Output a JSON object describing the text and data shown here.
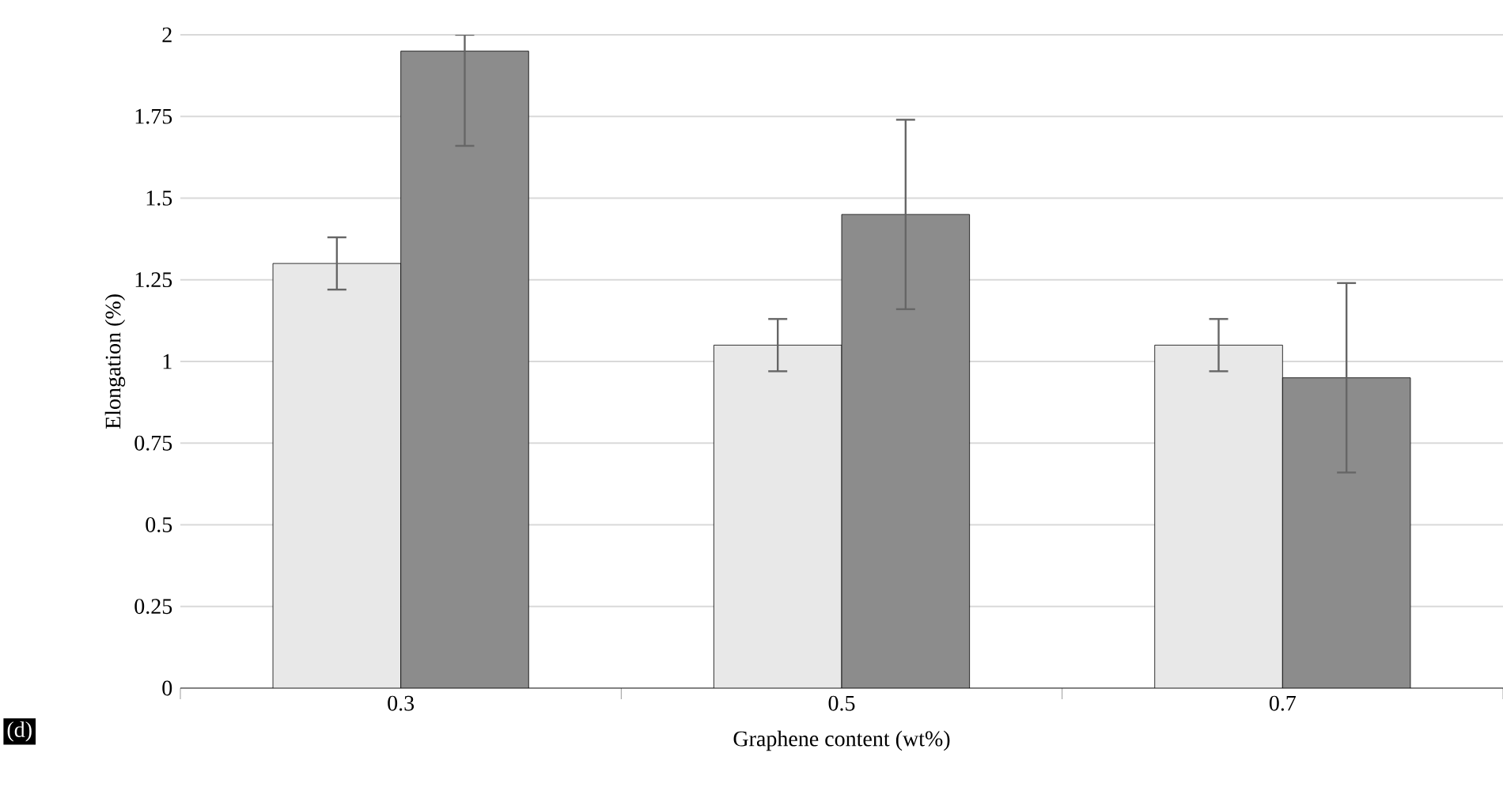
{
  "chart_data": {
    "type": "bar",
    "xlabel": "Graphene content (wt%)",
    "ylabel": "Elongation (%)",
    "categories": [
      "0.3",
      "0.5",
      "0.7"
    ],
    "series": [
      {
        "color": "#e8e8e8",
        "values": [
          1.3,
          1.05,
          1.05
        ],
        "errors": [
          0.08,
          0.08,
          0.08
        ]
      },
      {
        "color": "#8c8c8c",
        "values": [
          1.95,
          1.45,
          0.95
        ],
        "errors": [
          [
            1.66,
            2
          ],
          0.29,
          0.29
        ]
      }
    ],
    "ylim": [
      0,
      2
    ],
    "yticks": [
      0,
      0.25,
      0.5,
      0.75,
      1,
      1.25,
      1.5,
      1.75,
      2
    ],
    "grid": "y",
    "annotations": [
      "(d)"
    ]
  }
}
